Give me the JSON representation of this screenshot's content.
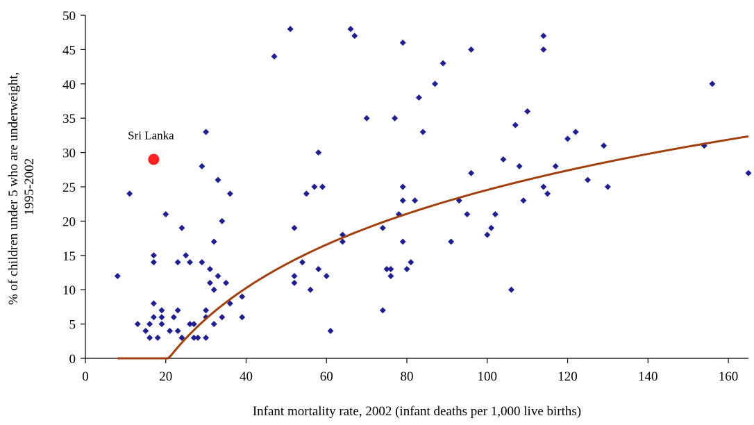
{
  "chart_data": {
    "type": "scatter",
    "title": "",
    "xlabel": "Infant mortality rate, 2002 (infant deaths per 1,000 live births)",
    "ylabel_lines": [
      "% of children under 5 who are underweight,",
      "1995-2002"
    ],
    "xlim": [
      0,
      165
    ],
    "ylim": [
      0,
      50
    ],
    "x_ticks": [
      0,
      20,
      40,
      60,
      80,
      100,
      120,
      140,
      160
    ],
    "y_ticks": [
      0,
      5,
      10,
      15,
      20,
      25,
      30,
      35,
      40,
      45,
      50
    ],
    "grid": false,
    "colors": {
      "points": "#1f1f8f",
      "trend": "#a0400e",
      "highlight": "#ff2020"
    },
    "points": [
      [
        8,
        12
      ],
      [
        11,
        24
      ],
      [
        13,
        5
      ],
      [
        15,
        4
      ],
      [
        16,
        3
      ],
      [
        16,
        5
      ],
      [
        17,
        6
      ],
      [
        17,
        8
      ],
      [
        17,
        14
      ],
      [
        17,
        15
      ],
      [
        18,
        3
      ],
      [
        19,
        5
      ],
      [
        19,
        6
      ],
      [
        19,
        7
      ],
      [
        20,
        21
      ],
      [
        21,
        4
      ],
      [
        22,
        6
      ],
      [
        23,
        7
      ],
      [
        23,
        14
      ],
      [
        23,
        4
      ],
      [
        24,
        19
      ],
      [
        24,
        3
      ],
      [
        25,
        15
      ],
      [
        26,
        5
      ],
      [
        26,
        14
      ],
      [
        27,
        3
      ],
      [
        27,
        5
      ],
      [
        28,
        3
      ],
      [
        29,
        14
      ],
      [
        29,
        28
      ],
      [
        30,
        3
      ],
      [
        30,
        6
      ],
      [
        30,
        7
      ],
      [
        30,
        33
      ],
      [
        31,
        11
      ],
      [
        31,
        13
      ],
      [
        32,
        10
      ],
      [
        32,
        17
      ],
      [
        32,
        5
      ],
      [
        33,
        12
      ],
      [
        33,
        26
      ],
      [
        34,
        20
      ],
      [
        34,
        6
      ],
      [
        35,
        11
      ],
      [
        36,
        8
      ],
      [
        36,
        24
      ],
      [
        39,
        6
      ],
      [
        39,
        9
      ],
      [
        47,
        44
      ],
      [
        51,
        48
      ],
      [
        52,
        11
      ],
      [
        52,
        12
      ],
      [
        52,
        19
      ],
      [
        54,
        14
      ],
      [
        55,
        24
      ],
      [
        56,
        10
      ],
      [
        57,
        25
      ],
      [
        58,
        30
      ],
      [
        58,
        13
      ],
      [
        59,
        25
      ],
      [
        60,
        12
      ],
      [
        61,
        4
      ],
      [
        64,
        17
      ],
      [
        64,
        18
      ],
      [
        66,
        48
      ],
      [
        67,
        47
      ],
      [
        70,
        35
      ],
      [
        74,
        7
      ],
      [
        74,
        19
      ],
      [
        75,
        13
      ],
      [
        76,
        12
      ],
      [
        76,
        13
      ],
      [
        77,
        35
      ],
      [
        78,
        21
      ],
      [
        79,
        17
      ],
      [
        79,
        23
      ],
      [
        79,
        25
      ],
      [
        79,
        46
      ],
      [
        80,
        13
      ],
      [
        81,
        14
      ],
      [
        82,
        23
      ],
      [
        83,
        38
      ],
      [
        84,
        33
      ],
      [
        87,
        40
      ],
      [
        89,
        43
      ],
      [
        91,
        17
      ],
      [
        93,
        23
      ],
      [
        95,
        21
      ],
      [
        96,
        27
      ],
      [
        96,
        45
      ],
      [
        100,
        18
      ],
      [
        101,
        19
      ],
      [
        102,
        21
      ],
      [
        104,
        29
      ],
      [
        106,
        10
      ],
      [
        107,
        34
      ],
      [
        108,
        28
      ],
      [
        109,
        23
      ],
      [
        110,
        36
      ],
      [
        114,
        47
      ],
      [
        114,
        45
      ],
      [
        114,
        25
      ],
      [
        115,
        24
      ],
      [
        117,
        28
      ],
      [
        120,
        32
      ],
      [
        122,
        33
      ],
      [
        125,
        26
      ],
      [
        129,
        31
      ],
      [
        130,
        25
      ],
      [
        154,
        31
      ],
      [
        156,
        40
      ],
      [
        165,
        27
      ]
    ],
    "highlight": {
      "label": "Sri Lanka",
      "x": 17,
      "y": 29
    },
    "trendline": {
      "type": "logarithmic",
      "a": 15.6,
      "b": -47.3,
      "x_start": 8,
      "x_end": 165
    }
  }
}
